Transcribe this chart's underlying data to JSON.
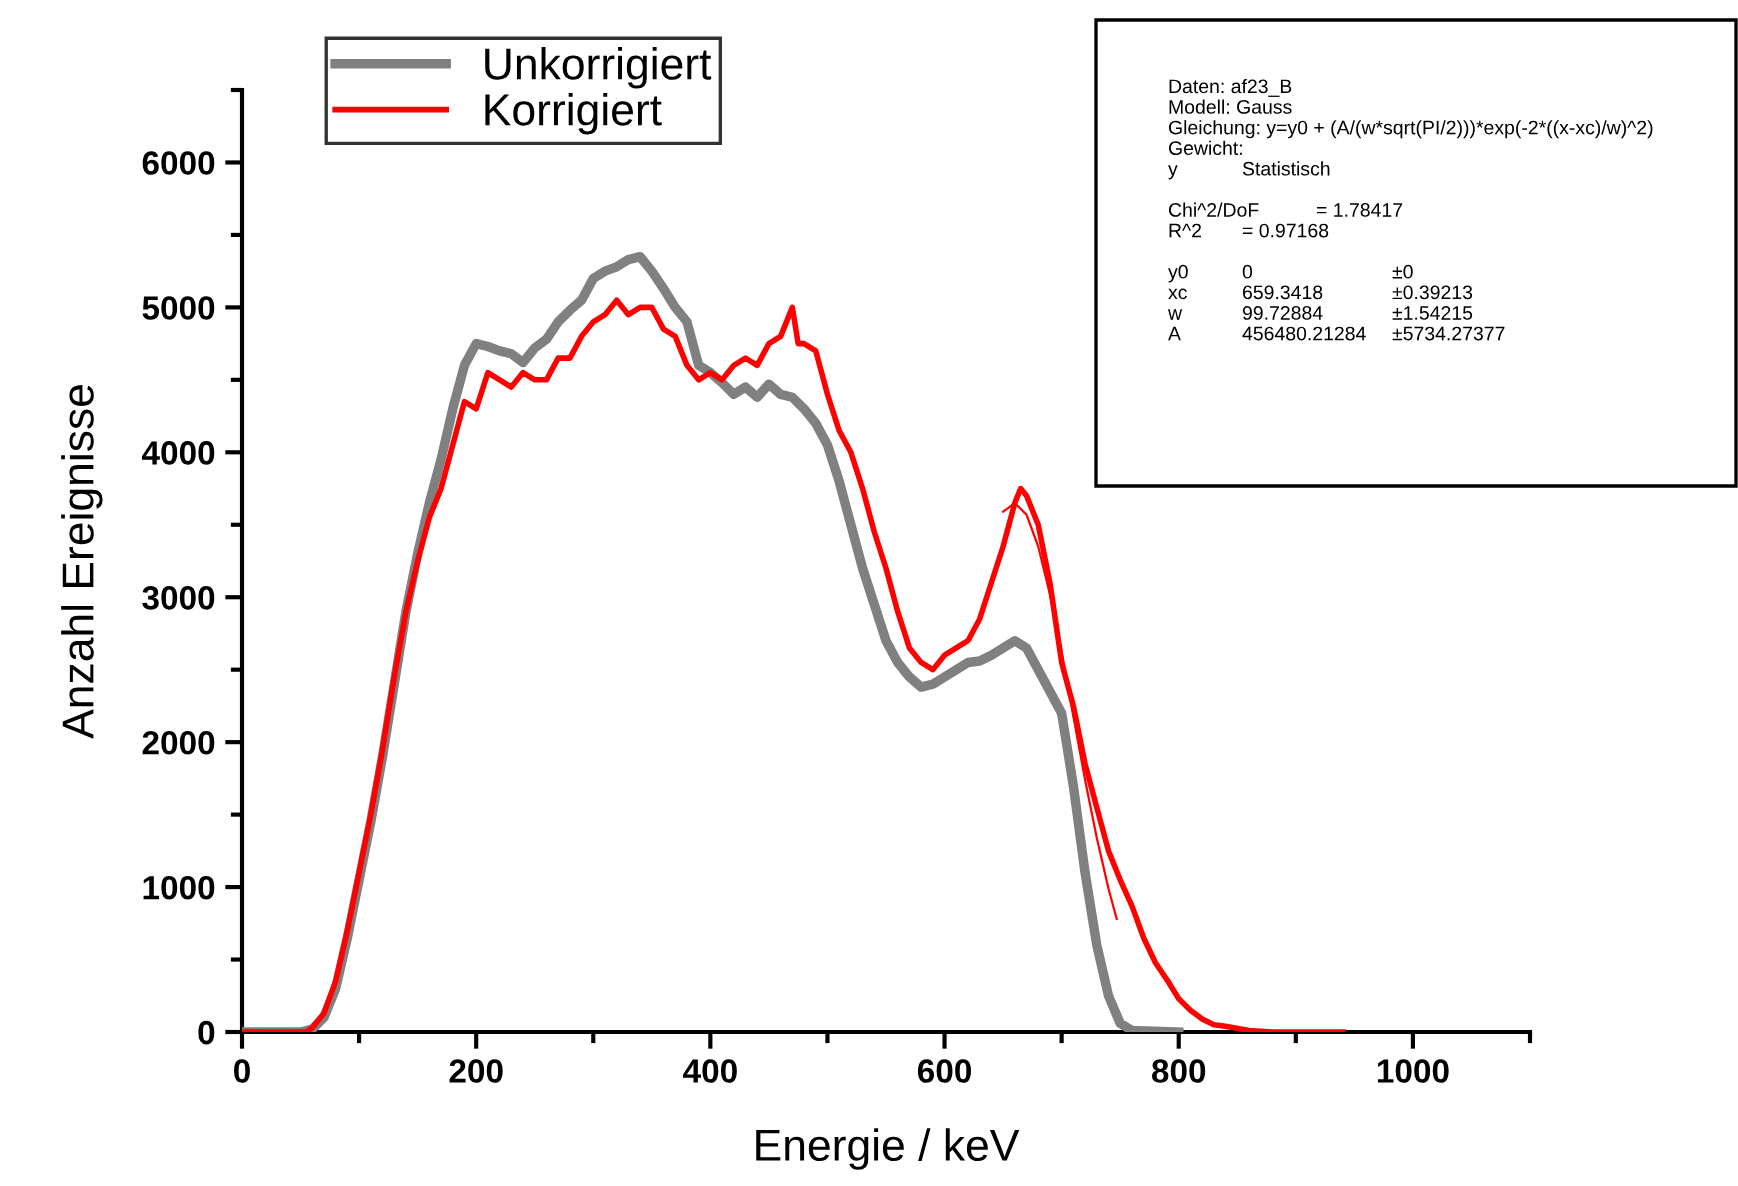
{
  "chart_data": {
    "type": "line",
    "xlabel": "Energie / keV",
    "ylabel": "Anzahl Ereignisse",
    "xlim": [
      0,
      1100
    ],
    "xticks": [
      0,
      200,
      400,
      600,
      800,
      1000
    ],
    "ylim": [
      0,
      6500
    ],
    "yticks": [
      0,
      1000,
      2000,
      3000,
      4000,
      5000,
      6000
    ],
    "grid": false,
    "legend": "top left",
    "marker": "none",
    "line_style": "solid",
    "series": [
      {
        "name": "Unkorrigiert",
        "color": "#808080",
        "x": [
          0,
          50,
          60,
          70,
          80,
          90,
          100,
          110,
          120,
          130,
          140,
          150,
          160,
          170,
          180,
          190,
          200,
          210,
          220,
          230,
          240,
          250,
          260,
          270,
          280,
          290,
          300,
          310,
          320,
          330,
          340,
          350,
          360,
          370,
          380,
          390,
          400,
          410,
          420,
          430,
          440,
          450,
          460,
          470,
          480,
          490,
          500,
          510,
          520,
          530,
          540,
          550,
          560,
          570,
          580,
          590,
          600,
          610,
          620,
          630,
          640,
          650,
          660,
          670,
          680,
          690,
          700,
          710,
          720,
          730,
          740,
          750,
          760,
          800
        ],
        "values": [
          0,
          0,
          20,
          100,
          300,
          650,
          1050,
          1450,
          1900,
          2400,
          2900,
          3300,
          3650,
          3950,
          4300,
          4600,
          4750,
          4730,
          4700,
          4680,
          4620,
          4720,
          4780,
          4900,
          4980,
          5050,
          5200,
          5250,
          5280,
          5330,
          5350,
          5250,
          5130,
          5000,
          4900,
          4600,
          4550,
          4480,
          4400,
          4450,
          4380,
          4470,
          4400,
          4380,
          4300,
          4200,
          4050,
          3800,
          3500,
          3200,
          2950,
          2700,
          2550,
          2450,
          2380,
          2400,
          2450,
          2500,
          2550,
          2560,
          2600,
          2650,
          2700,
          2650,
          2500,
          2350,
          2200,
          1700,
          1100,
          600,
          250,
          60,
          10,
          0
        ]
      },
      {
        "name": "Korrigiert",
        "color": "#ff0000",
        "x": [
          0,
          55,
          60,
          70,
          80,
          90,
          100,
          110,
          120,
          130,
          140,
          150,
          160,
          170,
          180,
          190,
          200,
          210,
          220,
          230,
          240,
          250,
          260,
          270,
          280,
          290,
          300,
          310,
          320,
          330,
          340,
          350,
          360,
          370,
          380,
          390,
          400,
          410,
          420,
          430,
          440,
          450,
          460,
          470,
          475,
          480,
          490,
          500,
          510,
          520,
          530,
          540,
          550,
          560,
          570,
          580,
          590,
          600,
          610,
          620,
          630,
          640,
          650,
          660,
          665,
          670,
          680,
          690,
          700,
          710,
          720,
          730,
          740,
          750,
          760,
          770,
          780,
          790,
          800,
          810,
          820,
          830,
          840,
          860,
          880,
          940
        ],
        "values": [
          0,
          0,
          30,
          130,
          350,
          700,
          1100,
          1500,
          1950,
          2450,
          2900,
          3250,
          3550,
          3750,
          4050,
          4350,
          4300,
          4550,
          4500,
          4450,
          4550,
          4500,
          4500,
          4650,
          4650,
          4800,
          4900,
          4950,
          5050,
          4950,
          5000,
          5000,
          4850,
          4800,
          4600,
          4500,
          4550,
          4500,
          4600,
          4650,
          4600,
          4750,
          4800,
          5000,
          4750,
          4750,
          4700,
          4400,
          4150,
          4000,
          3750,
          3450,
          3200,
          2900,
          2650,
          2550,
          2500,
          2600,
          2650,
          2700,
          2850,
          3100,
          3350,
          3650,
          3750,
          3700,
          3500,
          3100,
          2550,
          2250,
          1850,
          1550,
          1250,
          1050,
          870,
          650,
          480,
          360,
          230,
          150,
          90,
          50,
          40,
          10,
          0,
          0
        ]
      },
      {
        "color": "#ff0000",
        "x": [
          650,
          660,
          670,
          680,
          690,
          700,
          710,
          720,
          730,
          740,
          747
        ],
        "values": [
          3590,
          3650,
          3570,
          3350,
          3020,
          2620,
          2180,
          1740,
          1340,
          990,
          780
        ]
      }
    ],
    "annotations": [
      "Daten: af23_B",
      "Modell: Gauss",
      "Gleichung: y=y0 + (A/(w*sqrt(PI/2)))*exp(-2*((x-xc)/w)^2)",
      "Gewicht:",
      "y\tStatistisch",
      "Chi^2/DoF\t= 1.78417",
      "R^2\t= 0.97168",
      "y0\t0\t±0",
      "xc\t659.3418\t±0.39213",
      "w\t99.72884\t±1.54215",
      "A\t456480.21284\t±5734.27377"
    ]
  }
}
